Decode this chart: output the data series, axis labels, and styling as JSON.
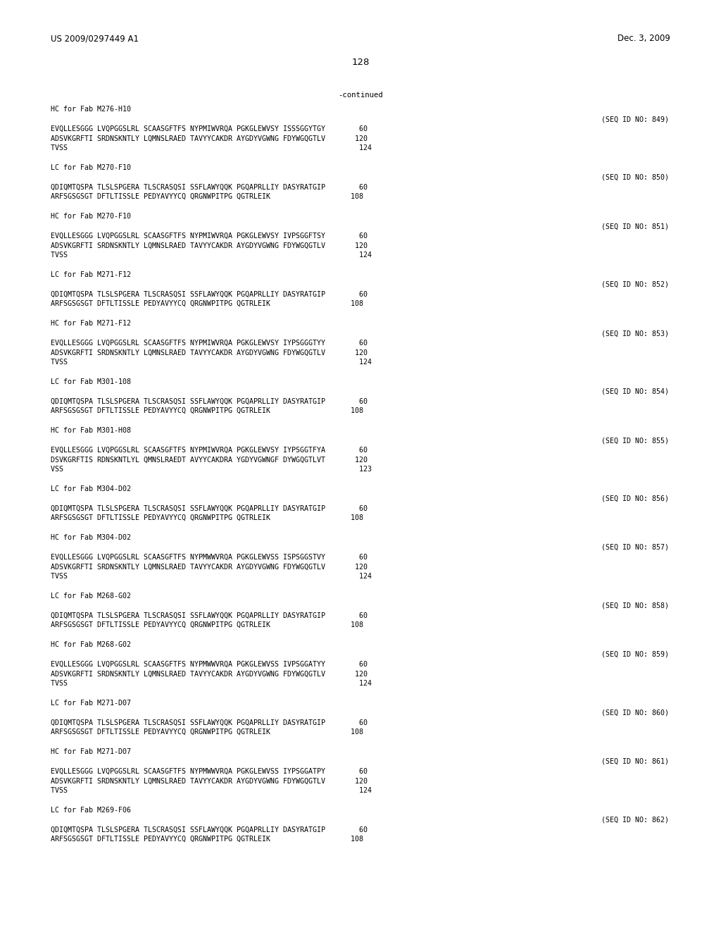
{
  "bg_color": "#ffffff",
  "header_left": "US 2009/0297449 A1",
  "header_right": "Dec. 3, 2009",
  "page_number": "128",
  "continued": "-continued",
  "sections": [
    {
      "label": "HC for Fab M276-H10",
      "seq_id": "849",
      "lines": [
        "EVQLLESGGG LVQPGGSLRL SCAASGFTFS NYPMIWVRQA PGKGLEWVSY ISSSGGYTGY        60",
        "ADSVKGRFTI SRDNSKNTLY LQMNSLRAED TAVYYCAKDR AYGDYVGWNG FDYWGQGTLV       120",
        "TVSS                                                                     124"
      ]
    },
    {
      "label": "LC for Fab M270-F10",
      "seq_id": "850",
      "lines": [
        "QDIQMTQSPA TLSLSPGERA TLSCRASQSI SSFLAWYQQK PGQAPRLLIY DASYRATGIP        60",
        "ARFSGSGSGT DFTLTISSLE PEDYAVYYCQ QRGNWPITPG QGTRLEIK                   108"
      ]
    },
    {
      "label": "HC for Fab M270-F10",
      "seq_id": "851",
      "lines": [
        "EVQLLESGGG LVQPGGSLRL SCAASGFTFS NYPMIWVRQA PGKGLEWVSY IVPSGGFTSY        60",
        "ADSVKGRFTI SRDNSKNTLY LQMNSLRAED TAVYYCAKDR AYGDYVGWNG FDYWGQGTLV       120",
        "TVSS                                                                     124"
      ]
    },
    {
      "label": "LC for Fab M271-F12",
      "seq_id": "852",
      "lines": [
        "QDIQMTQSPA TLSLSPGERA TLSCRASQSI SSFLAWYQQK PGQAPRLLIY DASYRATGIP        60",
        "ARFSGSGSGT DFTLTISSLE PEDYAVYYCQ QRGNWPITPG QGTRLEIK                   108"
      ]
    },
    {
      "label": "HC for Fab M271-F12",
      "seq_id": "853",
      "lines": [
        "EVQLLESGGG LVQPGGSLRL SCAASGFTFS NYPMIWVRQA PGKGLEWVSY IYPSGGGTYY        60",
        "ADSVKGRFTI SRDNSKNTLY LQMNSLRAED TAVYYCAKDR AYGDYVGWNG FDYWGQGTLV       120",
        "TVSS                                                                     124"
      ]
    },
    {
      "label": "LC for Fab M301-108",
      "seq_id": "854",
      "lines": [
        "QDIQMTQSPA TLSLSPGERA TLSCRASQSI SSFLAWYQQK PGQAPRLLIY DASYRATGIP        60",
        "ARFSGSGSGT DFTLTISSLE PEDYAVYYCQ QRGNWPITPG QGTRLEIK                   108"
      ]
    },
    {
      "label": "HC for Fab M301-H08",
      "seq_id": "855",
      "lines": [
        "EVQLLESGGG LVQPGGSLRL SCAASGFTFS NYPMIWVRQA PGKGLEWVSY IYPSGGTFYA        60",
        "DSVKGRFTIS RDNSKNTLYL QMNSLRAEDT AVYYCAKDRA YGDYVGWNGF DYWGQGTLVT       120",
        "VSS                                                                      123"
      ]
    },
    {
      "label": "LC for Fab M304-D02",
      "seq_id": "856",
      "lines": [
        "QDIQMTQSPA TLSLSPGERA TLSCRASQSI SSFLAWYQQK PGQAPRLLIY DASYRATGIP        60",
        "ARFSGSGSGT DFTLTISSLE PEDYAVYYCQ QRGNWPITPG QGTRLEIK                   108"
      ]
    },
    {
      "label": "HC for Fab M304-D02",
      "seq_id": "857",
      "lines": [
        "EVQLLESGGG LVQPGGSLRL SCAASGFTFS NYPMWWVRQA PGKGLEWVSS ISPSGGSTVY        60",
        "ADSVKGRFTI SRDNSKNTLY LQMNSLRAED TAVYYCAKDR AYGDYVGWNG FDYWGQGTLV       120",
        "TVSS                                                                     124"
      ]
    },
    {
      "label": "LC for Fab M268-G02",
      "seq_id": "858",
      "lines": [
        "QDIQMTQSPA TLSLSPGERA TLSCRASQSI SSFLAWYQQK PGQAPRLLIY DASYRATGIP        60",
        "ARFSGSGSGT DFTLTISSLE PEDYAVYYCQ QRGNWPITPG QGTRLEIK                   108"
      ]
    },
    {
      "label": "HC for Fab M268-G02",
      "seq_id": "859",
      "lines": [
        "EVQLLESGGG LVQPGGSLRL SCAASGFTFS NYPMWWVRQA PGKGLEWVSS IVPSGGATYY        60",
        "ADSVKGRFTI SRDNSKNTLY LQMNSLRAED TAVYYCAKDR AYGDYVGWNG FDYWGQGTLV       120",
        "TVSS                                                                     124"
      ]
    },
    {
      "label": "LC for Fab M271-D07",
      "seq_id": "860",
      "lines": [
        "QDIQMTQSPA TLSLSPGERA TLSCRASQSI SSFLAWYQQK PGQAPRLLIY DASYRATGIP        60",
        "ARFSGSGSGT DFTLTISSLE PEDYAVYYCQ QRGNWPITPG QGTRLEIK                   108"
      ]
    },
    {
      "label": "HC for Fab M271-D07",
      "seq_id": "861",
      "lines": [
        "EVQLLESGGG LVQPGGSLRL SCAASGFTFS NYPMWWVRQA PGKGLEWVSS IYPSGGATPY        60",
        "ADSVKGRFTI SRDNSKNTLY LQMNSLRAED TAVYYCAKDR AYGDYVGWNG FDYWGQGTLV       120",
        "TVSS                                                                     124"
      ]
    },
    {
      "label": "LC for Fab M269-F06",
      "seq_id": "862",
      "lines": [
        "QDIQMTQSPA TLSLSPGERA TLSCRASQSI SSFLAWYQQK PGQAPRLLIY DASYRATGIP        60",
        "ARFSGSGSGT DFTLTISSLE PEDYAVYYCQ QRGNWPITPG QGTRLEIK                   108"
      ]
    }
  ]
}
